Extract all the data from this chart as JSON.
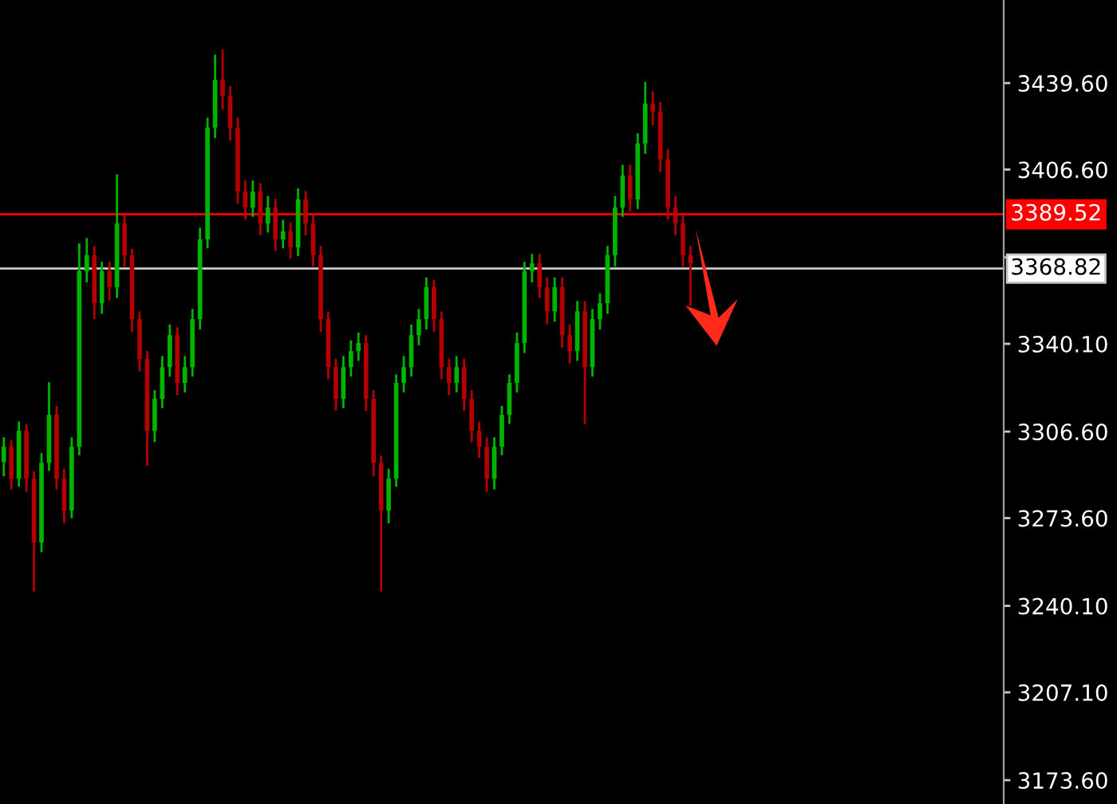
{
  "chart_data": {
    "type": "candlestick",
    "categories": [
      null,
      null,
      null,
      null,
      null,
      null,
      null,
      null,
      null,
      null,
      null,
      null,
      null,
      null,
      null,
      null,
      null,
      null,
      null,
      null,
      null,
      null,
      null,
      null,
      null,
      null,
      null,
      null,
      null,
      null,
      null,
      null,
      null,
      null,
      null,
      null,
      null,
      null,
      null,
      null,
      null,
      null,
      null,
      null,
      null,
      null,
      null,
      null,
      null,
      null,
      null,
      null,
      null,
      null,
      null,
      null,
      null,
      null,
      null,
      null,
      null,
      null,
      null,
      null,
      null,
      null,
      null,
      null,
      null,
      null,
      null,
      null,
      null,
      null,
      null,
      null,
      null,
      null,
      null,
      null,
      null,
      null,
      null,
      null,
      null,
      null,
      null,
      null,
      null,
      null,
      null,
      null,
      null,
      null,
      null,
      null,
      null,
      null,
      null,
      null,
      null,
      null,
      null,
      null,
      null,
      null,
      null,
      null,
      null,
      null,
      null,
      null,
      null,
      null,
      null,
      null,
      null,
      null,
      null,
      null,
      null,
      null,
      null,
      null,
      null,
      null,
      null,
      null,
      null,
      null,
      null,
      null,
      null
    ],
    "ohlc": [
      [
        3295.0,
        3304,
        3290,
        3300.8
      ],
      [
        3300.8,
        3303,
        3285,
        3288.6
      ],
      [
        3288.6,
        3310,
        3286,
        3306.9
      ],
      [
        3306.9,
        3309,
        3284,
        3288.6
      ],
      [
        3288.6,
        3291,
        3246.0,
        3264.3
      ],
      [
        3264.3,
        3298,
        3261,
        3294.7
      ],
      [
        3294.7,
        3325,
        3292,
        3313.0
      ],
      [
        3313.0,
        3316,
        3285,
        3288.6
      ],
      [
        3288.6,
        3292,
        3272,
        3276.5
      ],
      [
        3276.5,
        3304,
        3274,
        3300.8
      ],
      [
        3300.8,
        3378,
        3298,
        3367.8
      ],
      [
        3367.8,
        3380,
        3364,
        3373.9
      ],
      [
        3373.9,
        3377,
        3350,
        3355.6
      ],
      [
        3355.6,
        3371,
        3352,
        3367.8
      ],
      [
        3367.8,
        3371,
        3357,
        3361.7
      ],
      [
        3361.7,
        3404.3,
        3358,
        3386.0
      ],
      [
        3386.0,
        3389,
        3370,
        3373.9
      ],
      [
        3373.9,
        3376,
        3345,
        3349.5
      ],
      [
        3349.5,
        3352,
        3330,
        3334.3
      ],
      [
        3334.3,
        3337,
        3294,
        3306.9
      ],
      [
        3306.9,
        3322,
        3303,
        3319.1
      ],
      [
        3319.1,
        3335,
        3316,
        3331.2
      ],
      [
        3331.2,
        3347,
        3328,
        3343.4
      ],
      [
        3343.4,
        3346,
        3321,
        3325.2
      ],
      [
        3325.2,
        3335,
        3322,
        3331.2
      ],
      [
        3331.2,
        3353,
        3328,
        3349.5
      ],
      [
        3349.5,
        3384,
        3346,
        3380.0
      ],
      [
        3380.0,
        3426,
        3377,
        3422.6
      ],
      [
        3422.6,
        3450.0,
        3419,
        3440.8
      ],
      [
        3440.8,
        3452,
        3430,
        3434.7
      ],
      [
        3434.7,
        3438,
        3418,
        3422.6
      ],
      [
        3422.6,
        3426,
        3394,
        3398.2
      ],
      [
        3398.2,
        3402,
        3388,
        3392.1
      ],
      [
        3392.1,
        3402,
        3389,
        3398.2
      ],
      [
        3398.2,
        3401,
        3382,
        3386.0
      ],
      [
        3386.0,
        3396,
        3383,
        3392.1
      ],
      [
        3392.1,
        3395,
        3376,
        3380.0
      ],
      [
        3380.0,
        3387,
        3377,
        3383.0
      ],
      [
        3383.0,
        3386,
        3373,
        3376.9
      ],
      [
        3376.9,
        3399,
        3374,
        3395.2
      ],
      [
        3395.2,
        3398,
        3382,
        3386.0
      ],
      [
        3386.0,
        3389,
        3370,
        3373.9
      ],
      [
        3373.9,
        3377,
        3345,
        3349.5
      ],
      [
        3349.5,
        3352,
        3327,
        3331.2
      ],
      [
        3331.2,
        3334,
        3315,
        3319.1
      ],
      [
        3319.1,
        3335,
        3316,
        3331.2
      ],
      [
        3331.2,
        3341,
        3328,
        3337.3
      ],
      [
        3337.3,
        3344,
        3334,
        3340.4
      ],
      [
        3340.4,
        3343,
        3315,
        3319.1
      ],
      [
        3319.1,
        3322,
        3290,
        3294.7
      ],
      [
        3294.7,
        3297,
        3246.0,
        3276.5
      ],
      [
        3276.5,
        3292,
        3272,
        3288.6
      ],
      [
        3288.6,
        3328,
        3286,
        3325.2
      ],
      [
        3325.2,
        3335,
        3322,
        3331.2
      ],
      [
        3331.2,
        3347,
        3328,
        3343.4
      ],
      [
        3343.4,
        3353,
        3340,
        3349.5
      ],
      [
        3349.5,
        3365,
        3346,
        3361.7
      ],
      [
        3361.7,
        3364,
        3345,
        3349.5
      ],
      [
        3349.5,
        3352,
        3327,
        3331.2
      ],
      [
        3331.2,
        3334,
        3321,
        3325.2
      ],
      [
        3325.2,
        3335,
        3322,
        3331.2
      ],
      [
        3331.2,
        3334,
        3315,
        3319.1
      ],
      [
        3319.1,
        3322,
        3303,
        3306.9
      ],
      [
        3306.9,
        3310,
        3297,
        3300.8
      ],
      [
        3300.8,
        3304,
        3284,
        3288.6
      ],
      [
        3288.6,
        3304,
        3285,
        3300.8
      ],
      [
        3300.8,
        3316,
        3298,
        3313.0
      ],
      [
        3313.0,
        3328,
        3310,
        3325.2
      ],
      [
        3325.2,
        3344,
        3322,
        3340.4
      ],
      [
        3340.4,
        3371,
        3337,
        3367.8
      ],
      [
        3367.8,
        3374,
        3364,
        3370.8
      ],
      [
        3370.8,
        3374,
        3358,
        3361.7
      ],
      [
        3361.7,
        3365,
        3348,
        3352.5
      ],
      [
        3352.5,
        3365,
        3349,
        3361.7
      ],
      [
        3361.7,
        3365,
        3339,
        3343.4
      ],
      [
        3343.4,
        3347,
        3333,
        3337.3
      ],
      [
        3337.3,
        3356,
        3334,
        3352.5
      ],
      [
        3352.5,
        3356,
        3310.0,
        3331.2
      ],
      [
        3331.2,
        3353,
        3328,
        3349.5
      ],
      [
        3349.5,
        3359,
        3346,
        3355.6
      ],
      [
        3355.6,
        3377,
        3352,
        3373.9
      ],
      [
        3373.9,
        3396,
        3370,
        3392.1
      ],
      [
        3392.1,
        3408,
        3389,
        3404.3
      ],
      [
        3404.3,
        3408,
        3391,
        3395.2
      ],
      [
        3395.2,
        3420,
        3392,
        3416.5
      ],
      [
        3416.5,
        3439.6,
        3413,
        3431.7
      ],
      [
        3431.7,
        3436,
        3424,
        3428.6
      ],
      [
        3428.6,
        3432,
        3406,
        3410.4
      ],
      [
        3410.4,
        3414,
        3388,
        3392.1
      ],
      [
        3392.1,
        3396,
        3382,
        3386.0
      ],
      [
        3386.0,
        3389,
        3370,
        3373.9
      ],
      [
        3373.9,
        3377,
        3355,
        3370.8
      ],
      null,
      null,
      null,
      null,
      null,
      null,
      null,
      null,
      null,
      null,
      null,
      null,
      null,
      null,
      null,
      null,
      null,
      null,
      null,
      null,
      null,
      null,
      null,
      null,
      null,
      null,
      null,
      null,
      null,
      null,
      null,
      null,
      null,
      null,
      null,
      null,
      null,
      null,
      null,
      null,
      null
    ],
    "colors": [
      "#00b400",
      "#b40000",
      "#00b400",
      "#b40000",
      "#b40000",
      "#00b400",
      "#00b400",
      "#b40000",
      "#b40000",
      "#00b400",
      "#00b400",
      "#00b400",
      "#b40000",
      "#00b400",
      "#b40000",
      "#00b400",
      "#b40000",
      "#b40000",
      "#b40000",
      "#b40000",
      "#00b400",
      "#00b400",
      "#00b400",
      "#b40000",
      "#00b400",
      "#00b400",
      "#00b400",
      "#00b400",
      "#00b400",
      "#b40000",
      "#b40000",
      "#b40000",
      "#b40000",
      "#00b400",
      "#b40000",
      "#00b400",
      "#b40000",
      "#00b400",
      "#b40000",
      "#00b400",
      "#b40000",
      "#b40000",
      "#b40000",
      "#b40000",
      "#b40000",
      "#00b400",
      "#00b400",
      "#00b400",
      "#b40000",
      "#b40000",
      "#b40000",
      "#00b400",
      "#00b400",
      "#00b400",
      "#00b400",
      "#00b400",
      "#00b400",
      "#b40000",
      "#b40000",
      "#b40000",
      "#00b400",
      "#b40000",
      "#b40000",
      "#b40000",
      "#b40000",
      "#00b400",
      "#00b400",
      "#00b400",
      "#00b400",
      "#00b400",
      "#00b400",
      "#b40000",
      "#b40000",
      "#00b400",
      "#b40000",
      "#b40000",
      "#00b400",
      "#b40000",
      "#00b400",
      "#00b400",
      "#00b400",
      "#00b400",
      "#00b400",
      "#b40000",
      "#00b400",
      "#00b400",
      "#b40000",
      "#b40000",
      "#b40000",
      "#b40000",
      "#b40000",
      "#b40000",
      null,
      null,
      null,
      null,
      null,
      null,
      null,
      null,
      null,
      null,
      null,
      null,
      null,
      null,
      null,
      null,
      null,
      null,
      null,
      null,
      null,
      null,
      null,
      null,
      null,
      null,
      null,
      null,
      null,
      null,
      null,
      null,
      null,
      null,
      null,
      null,
      null,
      null,
      null,
      null,
      null
    ],
    "ylim": [
      3164.5,
      3471.3
    ],
    "yticks": [
      {
        "value": 3173.6,
        "label": "3173.60"
      },
      {
        "value": 3207.1,
        "label": "3207.10"
      },
      {
        "value": 3240.1,
        "label": "3240.10"
      },
      {
        "value": 3273.6,
        "label": "3273.60"
      },
      {
        "value": 3306.6,
        "label": "3306.60"
      },
      {
        "value": 3340.1,
        "label": "3340.10"
      },
      {
        "value": 3373.1,
        "label": null
      },
      {
        "value": 3406.6,
        "label": "3406.60"
      },
      {
        "value": 3439.6,
        "label": "3439.60"
      }
    ],
    "ref_lines": [
      {
        "axis": "y",
        "value": 3389.52,
        "label": "3389.52",
        "color": "#ff0000"
      },
      {
        "axis": "y",
        "value": 3368.82,
        "label": "3368.82",
        "color": "#c8c8c8"
      }
    ],
    "tick_labels": "y",
    "grid": false
  }
}
